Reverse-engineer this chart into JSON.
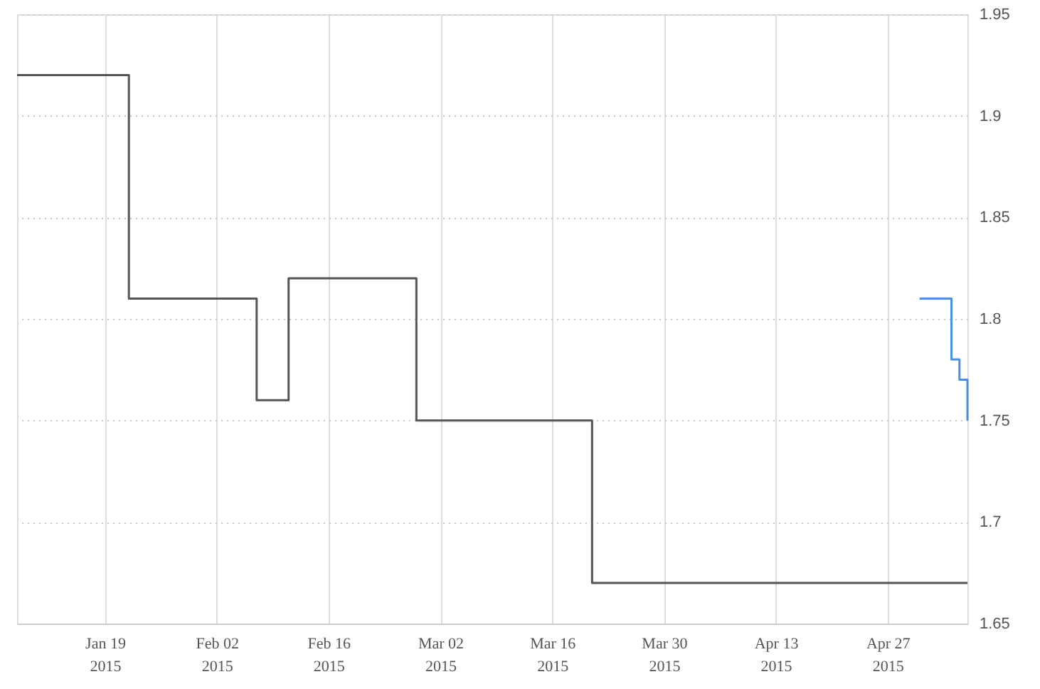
{
  "chart_data": {
    "type": "step",
    "series": [
      {
        "color": "#555555",
        "x": [
          "2015-01-08",
          "2015-01-22",
          "2015-02-07",
          "2015-02-11",
          "2015-02-27",
          "2015-03-21",
          "2015-05-07"
        ],
        "values": [
          1.92,
          1.81,
          1.76,
          1.82,
          1.75,
          1.67,
          1.67
        ]
      },
      {
        "color": "#4a90e2",
        "x": [
          "2015-05-01",
          "2015-05-05",
          "2015-05-06",
          "2015-05-07"
        ],
        "values": [
          1.81,
          1.78,
          1.77,
          1.75
        ]
      }
    ],
    "xlim": [
      "2015-01-08",
      "2015-05-07"
    ],
    "xticks": [
      {
        "value": "2015-01-19",
        "label": "Jan 19\n2015"
      },
      {
        "value": "2015-02-02",
        "label": "Feb 02\n2015"
      },
      {
        "value": "2015-02-16",
        "label": "Feb 16\n2015"
      },
      {
        "value": "2015-03-02",
        "label": "Mar 02\n2015"
      },
      {
        "value": "2015-03-16",
        "label": "Mar 16\n2015"
      },
      {
        "value": "2015-03-30",
        "label": "Mar 30\n2015"
      },
      {
        "value": "2015-04-13",
        "label": "Apr 13\n2015"
      },
      {
        "value": "2015-04-27",
        "label": "Apr 27\n2015"
      }
    ],
    "ylim": [
      1.65,
      1.95
    ],
    "yticks": [
      1.65,
      1.7,
      1.75,
      1.8,
      1.85,
      1.9,
      1.95
    ],
    "grid": true
  }
}
